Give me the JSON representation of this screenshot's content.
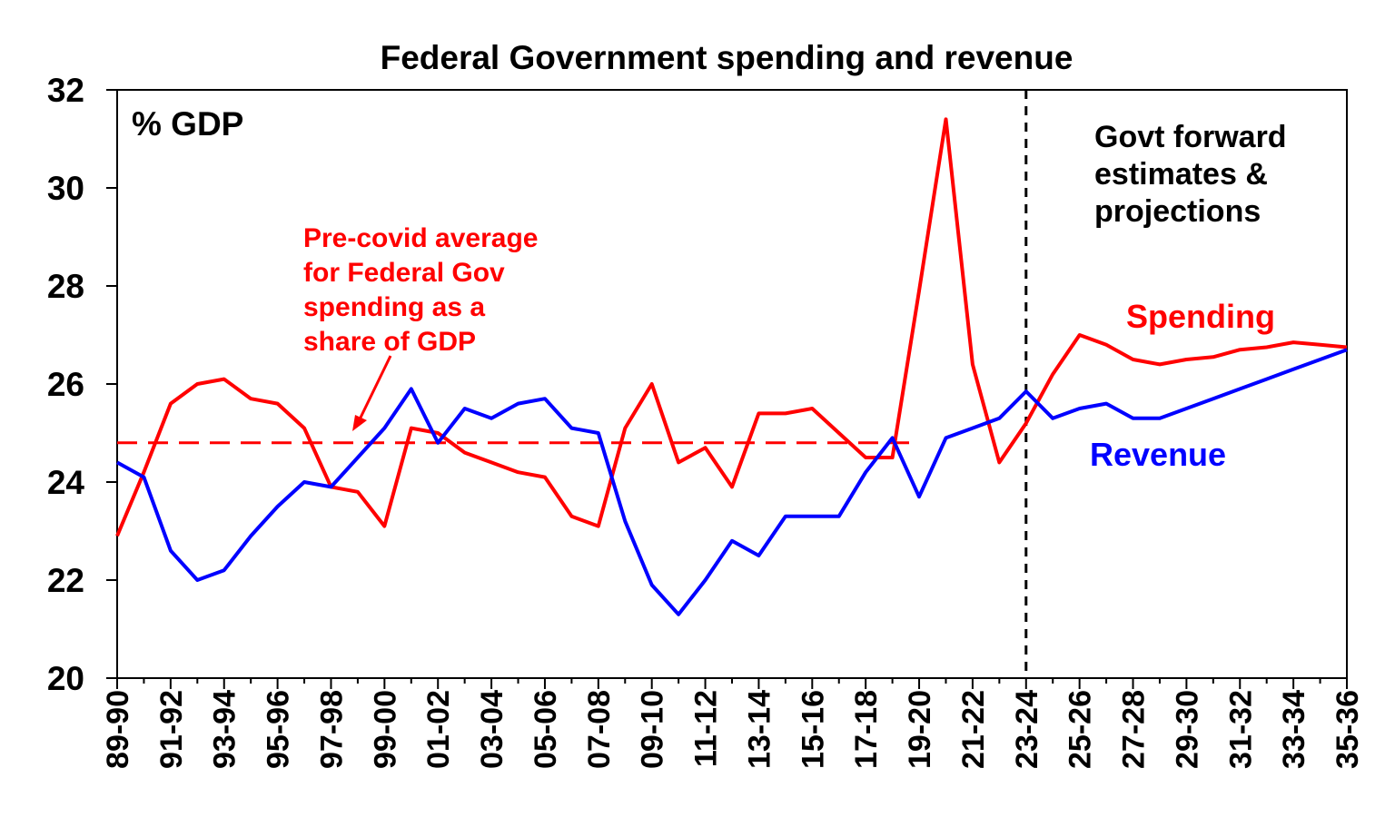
{
  "chart_data": {
    "type": "line",
    "title": "Federal Government spending and revenue",
    "ylabel": "% GDP",
    "xlabel": "",
    "ylim": [
      20,
      32
    ],
    "yticks": [
      20,
      22,
      24,
      26,
      28,
      30,
      32
    ],
    "x": [
      "89-90",
      "90-91",
      "91-92",
      "92-93",
      "93-94",
      "94-95",
      "95-96",
      "96-97",
      "97-98",
      "98-99",
      "99-00",
      "00-01",
      "01-02",
      "02-03",
      "03-04",
      "04-05",
      "05-06",
      "06-07",
      "07-08",
      "08-09",
      "09-10",
      "10-11",
      "11-12",
      "12-13",
      "13-14",
      "14-15",
      "15-16",
      "16-17",
      "17-18",
      "18-19",
      "19-20",
      "20-21",
      "21-22",
      "22-23",
      "23-24",
      "24-25",
      "25-26",
      "26-27",
      "27-28",
      "28-29",
      "29-30",
      "30-31",
      "31-32",
      "32-33",
      "33-34",
      "34-35",
      "35-36"
    ],
    "xtick_labels": [
      "89-90",
      "91-92",
      "93-94",
      "95-96",
      "97-98",
      "99-00",
      "01-02",
      "03-04",
      "05-06",
      "07-08",
      "09-10",
      "11-12",
      "13-14",
      "15-16",
      "17-18",
      "19-20",
      "21-22",
      "23-24",
      "25-26",
      "27-28",
      "29-30",
      "31-32",
      "33-34",
      "35-36"
    ],
    "series": [
      {
        "name": "Spending",
        "color": "#ff0000",
        "values": [
          22.9,
          24.2,
          25.6,
          26.0,
          26.1,
          25.7,
          25.6,
          25.1,
          23.9,
          23.8,
          23.1,
          25.1,
          25.0,
          24.6,
          24.4,
          24.2,
          24.1,
          23.3,
          23.1,
          25.1,
          26.0,
          24.4,
          24.7,
          23.9,
          25.4,
          25.4,
          25.5,
          25.0,
          24.5,
          24.5,
          27.9,
          31.4,
          26.4,
          24.4,
          25.2,
          26.2,
          27.0,
          26.8,
          26.5,
          26.4,
          26.5,
          26.55,
          26.7,
          26.75,
          26.85,
          26.8,
          26.75
        ]
      },
      {
        "name": "Revenue",
        "color": "#0000ff",
        "values": [
          24.4,
          24.1,
          22.6,
          22.0,
          22.2,
          22.9,
          23.5,
          24.0,
          23.9,
          24.5,
          25.1,
          25.9,
          24.8,
          25.5,
          25.3,
          25.6,
          25.7,
          25.1,
          25.0,
          23.2,
          21.9,
          21.3,
          22.0,
          22.8,
          22.5,
          23.3,
          23.3,
          23.3,
          24.2,
          24.9,
          23.7,
          24.9,
          25.1,
          25.3,
          25.85,
          25.3,
          25.5,
          25.6,
          25.3,
          25.3,
          25.5,
          25.7,
          25.9,
          26.1,
          26.3,
          26.5,
          26.7
        ]
      }
    ],
    "reference_line": {
      "label": "Pre-covid average for Federal Gov spending as a share of GDP",
      "label_lines": [
        "Pre-covid average",
        "for Federal Gov",
        "spending as a",
        "share of GDP"
      ],
      "value": 24.8,
      "x_start": "89-90",
      "x_end": "19-20",
      "color": "#ff0000"
    },
    "projection_divider": {
      "at": "23-24",
      "label_lines": [
        "Govt forward",
        "estimates &",
        "projections"
      ]
    },
    "series_labels": {
      "spending": "Spending",
      "revenue": "Revenue"
    },
    "grid": false
  }
}
